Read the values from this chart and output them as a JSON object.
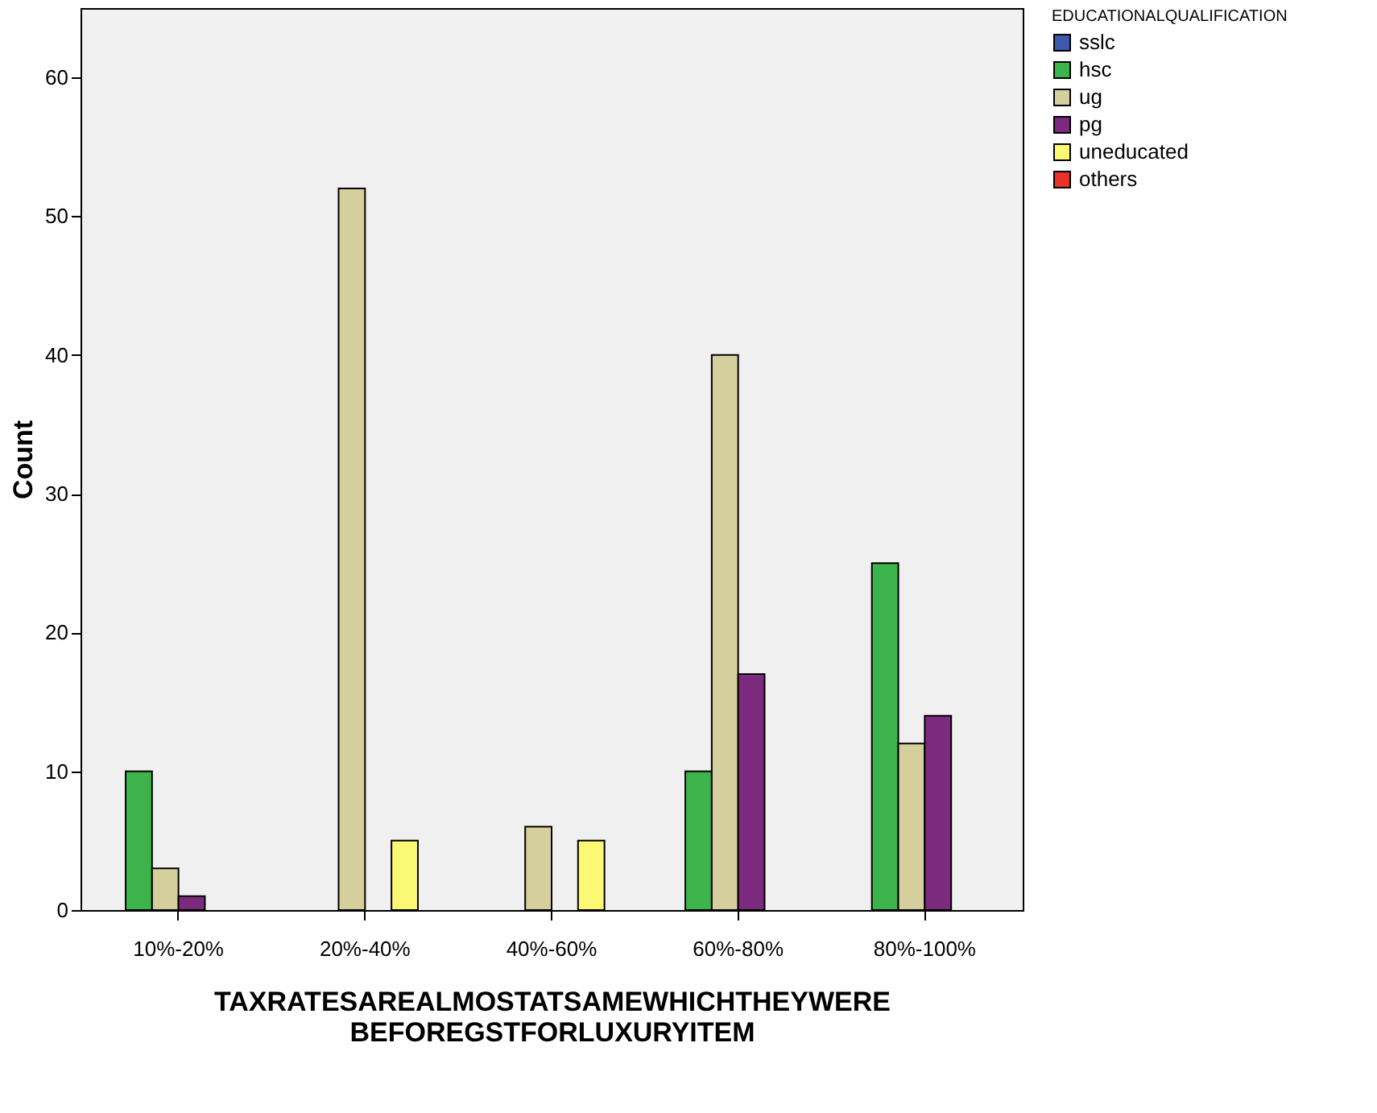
{
  "chart_data": {
    "type": "bar",
    "xlabel": "TAXRATESAREALMOSTATSAMEWHICHTHEYWERE\nBEFOREGSTFORLUXURYITEM",
    "ylabel": "Count",
    "legend_title": "EDUCATIONALQUALIFICATION",
    "categories": [
      "10%-20%",
      "20%-40%",
      "40%-60%",
      "60%-80%",
      "80%-100%"
    ],
    "series": [
      {
        "name": "sslc",
        "color": "#3e58ac",
        "values": [
          null,
          null,
          null,
          null,
          null
        ]
      },
      {
        "name": "hsc",
        "color": "#3cb44b",
        "values": [
          10,
          null,
          null,
          10,
          25
        ]
      },
      {
        "name": "ug",
        "color": "#d4cf9d",
        "values": [
          3,
          52,
          6,
          40,
          12
        ]
      },
      {
        "name": "pg",
        "color": "#7b2a7e",
        "values": [
          1,
          null,
          null,
          17,
          14
        ]
      },
      {
        "name": "uneducated",
        "color": "#fbf873",
        "values": [
          null,
          5,
          5,
          null,
          null
        ]
      },
      {
        "name": "others",
        "color": "#e8332b",
        "values": [
          null,
          null,
          null,
          null,
          null
        ]
      }
    ],
    "ylim": [
      0,
      65
    ],
    "yticks": [
      0,
      10,
      20,
      30,
      40,
      50,
      60
    ],
    "grid": false,
    "legend": "top right"
  }
}
